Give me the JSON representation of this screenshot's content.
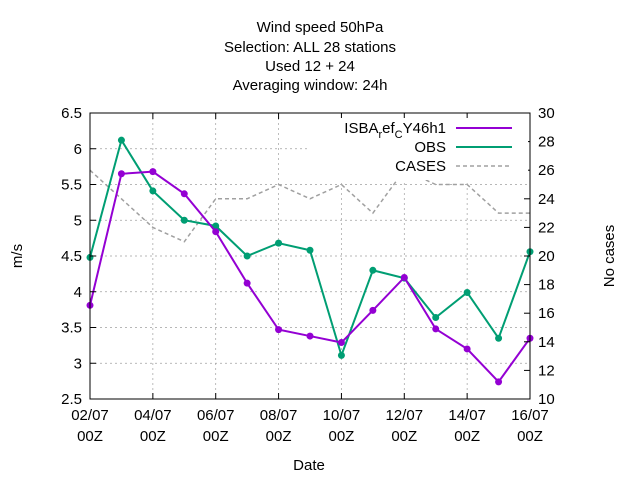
{
  "chart_data": {
    "type": "line",
    "title_lines": [
      "Wind speed 50hPa",
      "Selection: ALL      28 stations",
      "Used  12 + 24",
      "Averaging window: 24h"
    ],
    "xlabel": "Date",
    "ylabel": "m/s",
    "y2label": "No cases",
    "x_ticks": [
      {
        "line1": "02/07",
        "line2": "00Z",
        "idx": 0
      },
      {
        "line1": "04/07",
        "line2": "00Z",
        "idx": 2
      },
      {
        "line1": "06/07",
        "line2": "00Z",
        "idx": 4
      },
      {
        "line1": "08/07",
        "line2": "00Z",
        "idx": 6
      },
      {
        "line1": "10/07",
        "line2": "00Z",
        "idx": 8
      },
      {
        "line1": "12/07",
        "line2": "00Z",
        "idx": 10
      },
      {
        "line1": "14/07",
        "line2": "00Z",
        "idx": 12
      },
      {
        "line1": "16/07",
        "line2": "00Z",
        "idx": 14
      }
    ],
    "x": [
      "02/07",
      "03/07",
      "04/07",
      "05/07",
      "06/07",
      "07/07",
      "08/07",
      "09/07",
      "10/07",
      "11/07",
      "12/07",
      "13/07",
      "14/07",
      "15/07",
      "16/07"
    ],
    "ylim": [
      2.5,
      6.5
    ],
    "y_ticks": [
      "2.5",
      "3",
      "3.5",
      "4",
      "4.5",
      "5",
      "5.5",
      "6",
      "6.5"
    ],
    "y2lim": [
      10,
      30
    ],
    "y2_ticks": [
      "10",
      "12",
      "14",
      "16",
      "18",
      "20",
      "22",
      "24",
      "26",
      "28",
      "30"
    ],
    "grid": true,
    "legend_position": "top-right",
    "series": [
      {
        "name": "ISBA_ref_CY46h1",
        "legend_base": "ISBA",
        "legend_sub1": "r",
        "legend_mid": "ef",
        "legend_sub2": "C",
        "legend_end": "Y46h1",
        "color": "#9400d3",
        "axis": "left",
        "style": "solid-points",
        "values": [
          3.81,
          5.65,
          5.68,
          5.37,
          4.84,
          4.12,
          3.47,
          3.38,
          3.29,
          3.74,
          4.2,
          3.48,
          3.2,
          2.74,
          3.35
        ]
      },
      {
        "name": "OBS",
        "color": "#009e73",
        "axis": "left",
        "style": "solid-points",
        "values": [
          4.48,
          6.12,
          5.41,
          5.0,
          4.92,
          4.5,
          4.68,
          4.58,
          3.11,
          4.3,
          4.19,
          3.64,
          3.99,
          3.35,
          4.56
        ]
      },
      {
        "name": "CASES",
        "color": "#a0a0a0",
        "axis": "right",
        "style": "dashed",
        "values": [
          26,
          24,
          22,
          21,
          24,
          24,
          25,
          24,
          25,
          23,
          26,
          25,
          25,
          23,
          23
        ]
      }
    ]
  }
}
